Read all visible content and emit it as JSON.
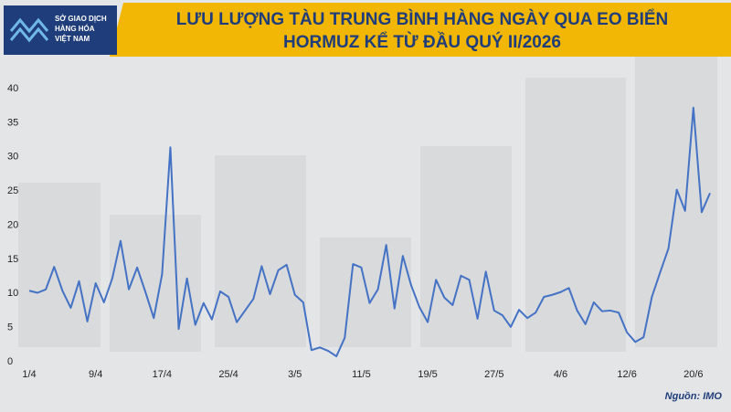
{
  "chart_data": {
    "type": "line",
    "title": [
      "LƯU LƯỢNG TÀU TRUNG BÌNH HÀNG NGÀY QUA EO BIỂN",
      "HORMUZ KỂ TỪ ĐẦU QUÝ II/2026"
    ],
    "logo": [
      "SỞ GIAO DỊCH",
      "HÀNG HÓA",
      "VIỆT NAM"
    ],
    "source": "Nguồn: IMO",
    "categories": [
      "1/4",
      null,
      null,
      null,
      null,
      null,
      null,
      null,
      "9/4",
      null,
      null,
      null,
      null,
      null,
      null,
      null,
      "17/4",
      null,
      null,
      null,
      null,
      null,
      null,
      null,
      "25/4",
      null,
      null,
      null,
      null,
      null,
      null,
      null,
      "3/5",
      null,
      null,
      null,
      null,
      null,
      null,
      null,
      "11/5",
      null,
      null,
      null,
      null,
      null,
      null,
      null,
      "19/5",
      null,
      null,
      null,
      null,
      null,
      null,
      null,
      "27/5",
      null,
      null,
      null,
      null,
      null,
      null,
      null,
      "4/6",
      null,
      null,
      null,
      null,
      null,
      null,
      null,
      "12/6",
      null,
      null,
      null,
      null,
      null,
      null,
      null,
      "20/6",
      null,
      null
    ],
    "series": [
      {
        "color": "#4472c4",
        "values": [
          10.4,
          10.1,
          10.6,
          13.9,
          10.4,
          7.9,
          11.8,
          5.9,
          11.5,
          8.7,
          12.2,
          17.7,
          10.6,
          13.8,
          10.2,
          6.4,
          12.8,
          31.4,
          4.8,
          12.2,
          5.4,
          8.6,
          6.2,
          10.3,
          9.5,
          5.8,
          7.5,
          9.2,
          14.0,
          9.9,
          13.4,
          14.2,
          9.8,
          8.7,
          1.7,
          2.1,
          1.6,
          0.8,
          3.5,
          14.3,
          13.8,
          8.6,
          10.6,
          17.1,
          7.8,
          15.5,
          11.2,
          8.0,
          5.8,
          12.0,
          9.4,
          8.3,
          12.6,
          12.0,
          6.3,
          13.2,
          7.5,
          6.8,
          5.1,
          7.6,
          6.4,
          7.2,
          9.5,
          9.8,
          10.2,
          10.8,
          7.5,
          5.5,
          8.7,
          7.4,
          7.5,
          7.2,
          4.3,
          2.9,
          3.6,
          9.5,
          13.1,
          16.6,
          25.2,
          22.1,
          37.2,
          21.9,
          24.7
        ]
      }
    ],
    "ylim": [
      0,
      40
    ],
    "yticks": [
      0,
      5,
      10,
      15,
      20,
      25,
      30,
      35,
      40
    ],
    "grid": false
  }
}
